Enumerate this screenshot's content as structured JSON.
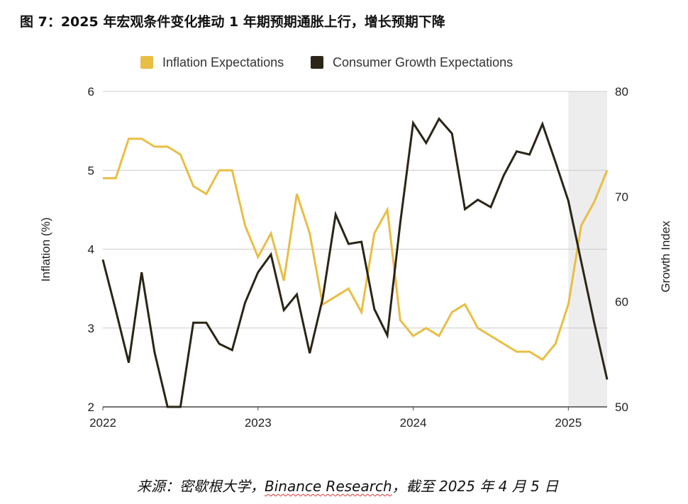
{
  "figure": {
    "title": "图 7：2025 年宏观条件变化推动 1 年期预期通胀上行，增长预期下降",
    "source_prefix": "来源：密歇根大学，",
    "source_brand": "Binance Research",
    "source_suffix": "，截至 2025 年 4 月 5 日"
  },
  "colors": {
    "inflation": "#E8BE45",
    "growth": "#2A2516",
    "shade": "#EDEDED",
    "grid": "#CCCCCC",
    "axis": "#444444"
  },
  "chart_data": {
    "type": "line",
    "legend_position": "top",
    "grid": true,
    "xlabel": "",
    "ylabel": "Inflation (%)",
    "y2label": "Growth Index",
    "ylim": [
      2,
      6
    ],
    "y2lim": [
      50,
      80
    ],
    "yticks": [
      "2",
      "3",
      "4",
      "5",
      "6"
    ],
    "y2ticks": [
      "50",
      "60",
      "70",
      "80"
    ],
    "xlim": [
      2022.0,
      2025.25
    ],
    "xticks": [
      {
        "value": 2022,
        "label": "2022"
      },
      {
        "value": 2023,
        "label": "2023"
      },
      {
        "value": 2024,
        "label": "2024"
      },
      {
        "value": 2025,
        "label": "2025"
      }
    ],
    "shaded_region": [
      2025.0,
      2025.25
    ],
    "series": [
      {
        "name": "Inflation Expectations",
        "axis": "left",
        "x": [
          2022.0,
          2022.0833,
          2022.1667,
          2022.25,
          2022.3333,
          2022.4167,
          2022.5,
          2022.5833,
          2022.6667,
          2022.75,
          2022.8333,
          2022.9167,
          2023.0,
          2023.0833,
          2023.1667,
          2023.25,
          2023.3333,
          2023.4167,
          2023.5,
          2023.5833,
          2023.6667,
          2023.75,
          2023.8333,
          2023.9167,
          2024.0,
          2024.0833,
          2024.1667,
          2024.25,
          2024.3333,
          2024.4167,
          2024.5,
          2024.5833,
          2024.6667,
          2024.75,
          2024.8333,
          2024.9167,
          2025.0,
          2025.0833,
          2025.1667,
          2025.25
        ],
        "values": [
          4.9,
          4.9,
          5.4,
          5.4,
          5.3,
          5.3,
          5.2,
          4.8,
          4.7,
          5.0,
          5.0,
          4.3,
          3.9,
          4.2,
          3.6,
          4.7,
          4.2,
          3.3,
          3.4,
          3.5,
          3.2,
          4.2,
          4.5,
          3.1,
          2.9,
          3.0,
          2.9,
          3.2,
          3.3,
          3.0,
          2.9,
          2.8,
          2.7,
          2.7,
          2.6,
          2.8,
          3.3,
          4.3,
          4.6,
          5.0
        ]
      },
      {
        "name": "Consumer Growth Expectations",
        "axis": "right",
        "x": [
          2022.0,
          2022.0833,
          2022.1667,
          2022.25,
          2022.3333,
          2022.4167,
          2022.5,
          2022.5833,
          2022.6667,
          2022.75,
          2022.8333,
          2022.9167,
          2023.0,
          2023.0833,
          2023.1667,
          2023.25,
          2023.3333,
          2023.4167,
          2023.5,
          2023.5833,
          2023.6667,
          2023.75,
          2023.8333,
          2023.9167,
          2024.0,
          2024.0833,
          2024.1667,
          2024.25,
          2024.3333,
          2024.4167,
          2024.5,
          2024.5833,
          2024.6667,
          2024.75,
          2024.8333,
          2024.9167,
          2025.0,
          2025.0833,
          2025.1667,
          2025.25
        ],
        "values": [
          64.0,
          59.2,
          54.2,
          62.8,
          55.2,
          50.0,
          50.0,
          58.0,
          58.0,
          56.0,
          55.4,
          59.9,
          62.8,
          64.5,
          59.2,
          60.7,
          55.1,
          60.3,
          68.3,
          65.5,
          65.7,
          59.3,
          56.8,
          67.5,
          77.0,
          75.1,
          77.4,
          76.0,
          68.8,
          69.7,
          69.0,
          72.0,
          74.3,
          74.0,
          76.9,
          73.3,
          69.6,
          63.8,
          58.0,
          52.6
        ]
      }
    ]
  }
}
